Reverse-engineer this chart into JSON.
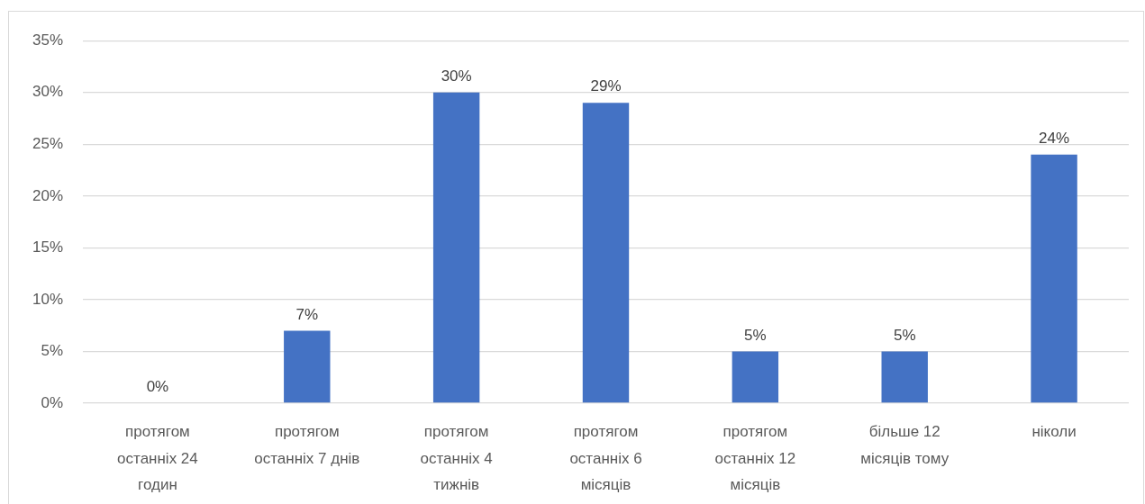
{
  "chart_data": {
    "type": "bar",
    "categories": [
      "протягом останніх 24 годин",
      "протягом останніх 7 днів",
      "протягом останніх 4 тижнів",
      "протягом останніх 6 місяців",
      "протягом останніх 12 місяців",
      "більше 12 місяців тому",
      "ніколи"
    ],
    "values": [
      0,
      7,
      30,
      29,
      5,
      5,
      24
    ],
    "value_labels": [
      "0%",
      "7%",
      "30%",
      "29%",
      "5%",
      "5%",
      "24%"
    ],
    "color": "#4472c4",
    "ylim": [
      0,
      35
    ],
    "yticks": [
      {
        "value": 0,
        "label": "0%"
      },
      {
        "value": 5,
        "label": "5%"
      },
      {
        "value": 10,
        "label": "10%"
      },
      {
        "value": 15,
        "label": "15%"
      },
      {
        "value": 20,
        "label": "20%"
      },
      {
        "value": 25,
        "label": "25%"
      },
      {
        "value": 30,
        "label": "30%"
      },
      {
        "value": 35,
        "label": "35%"
      }
    ],
    "grid": "y"
  }
}
